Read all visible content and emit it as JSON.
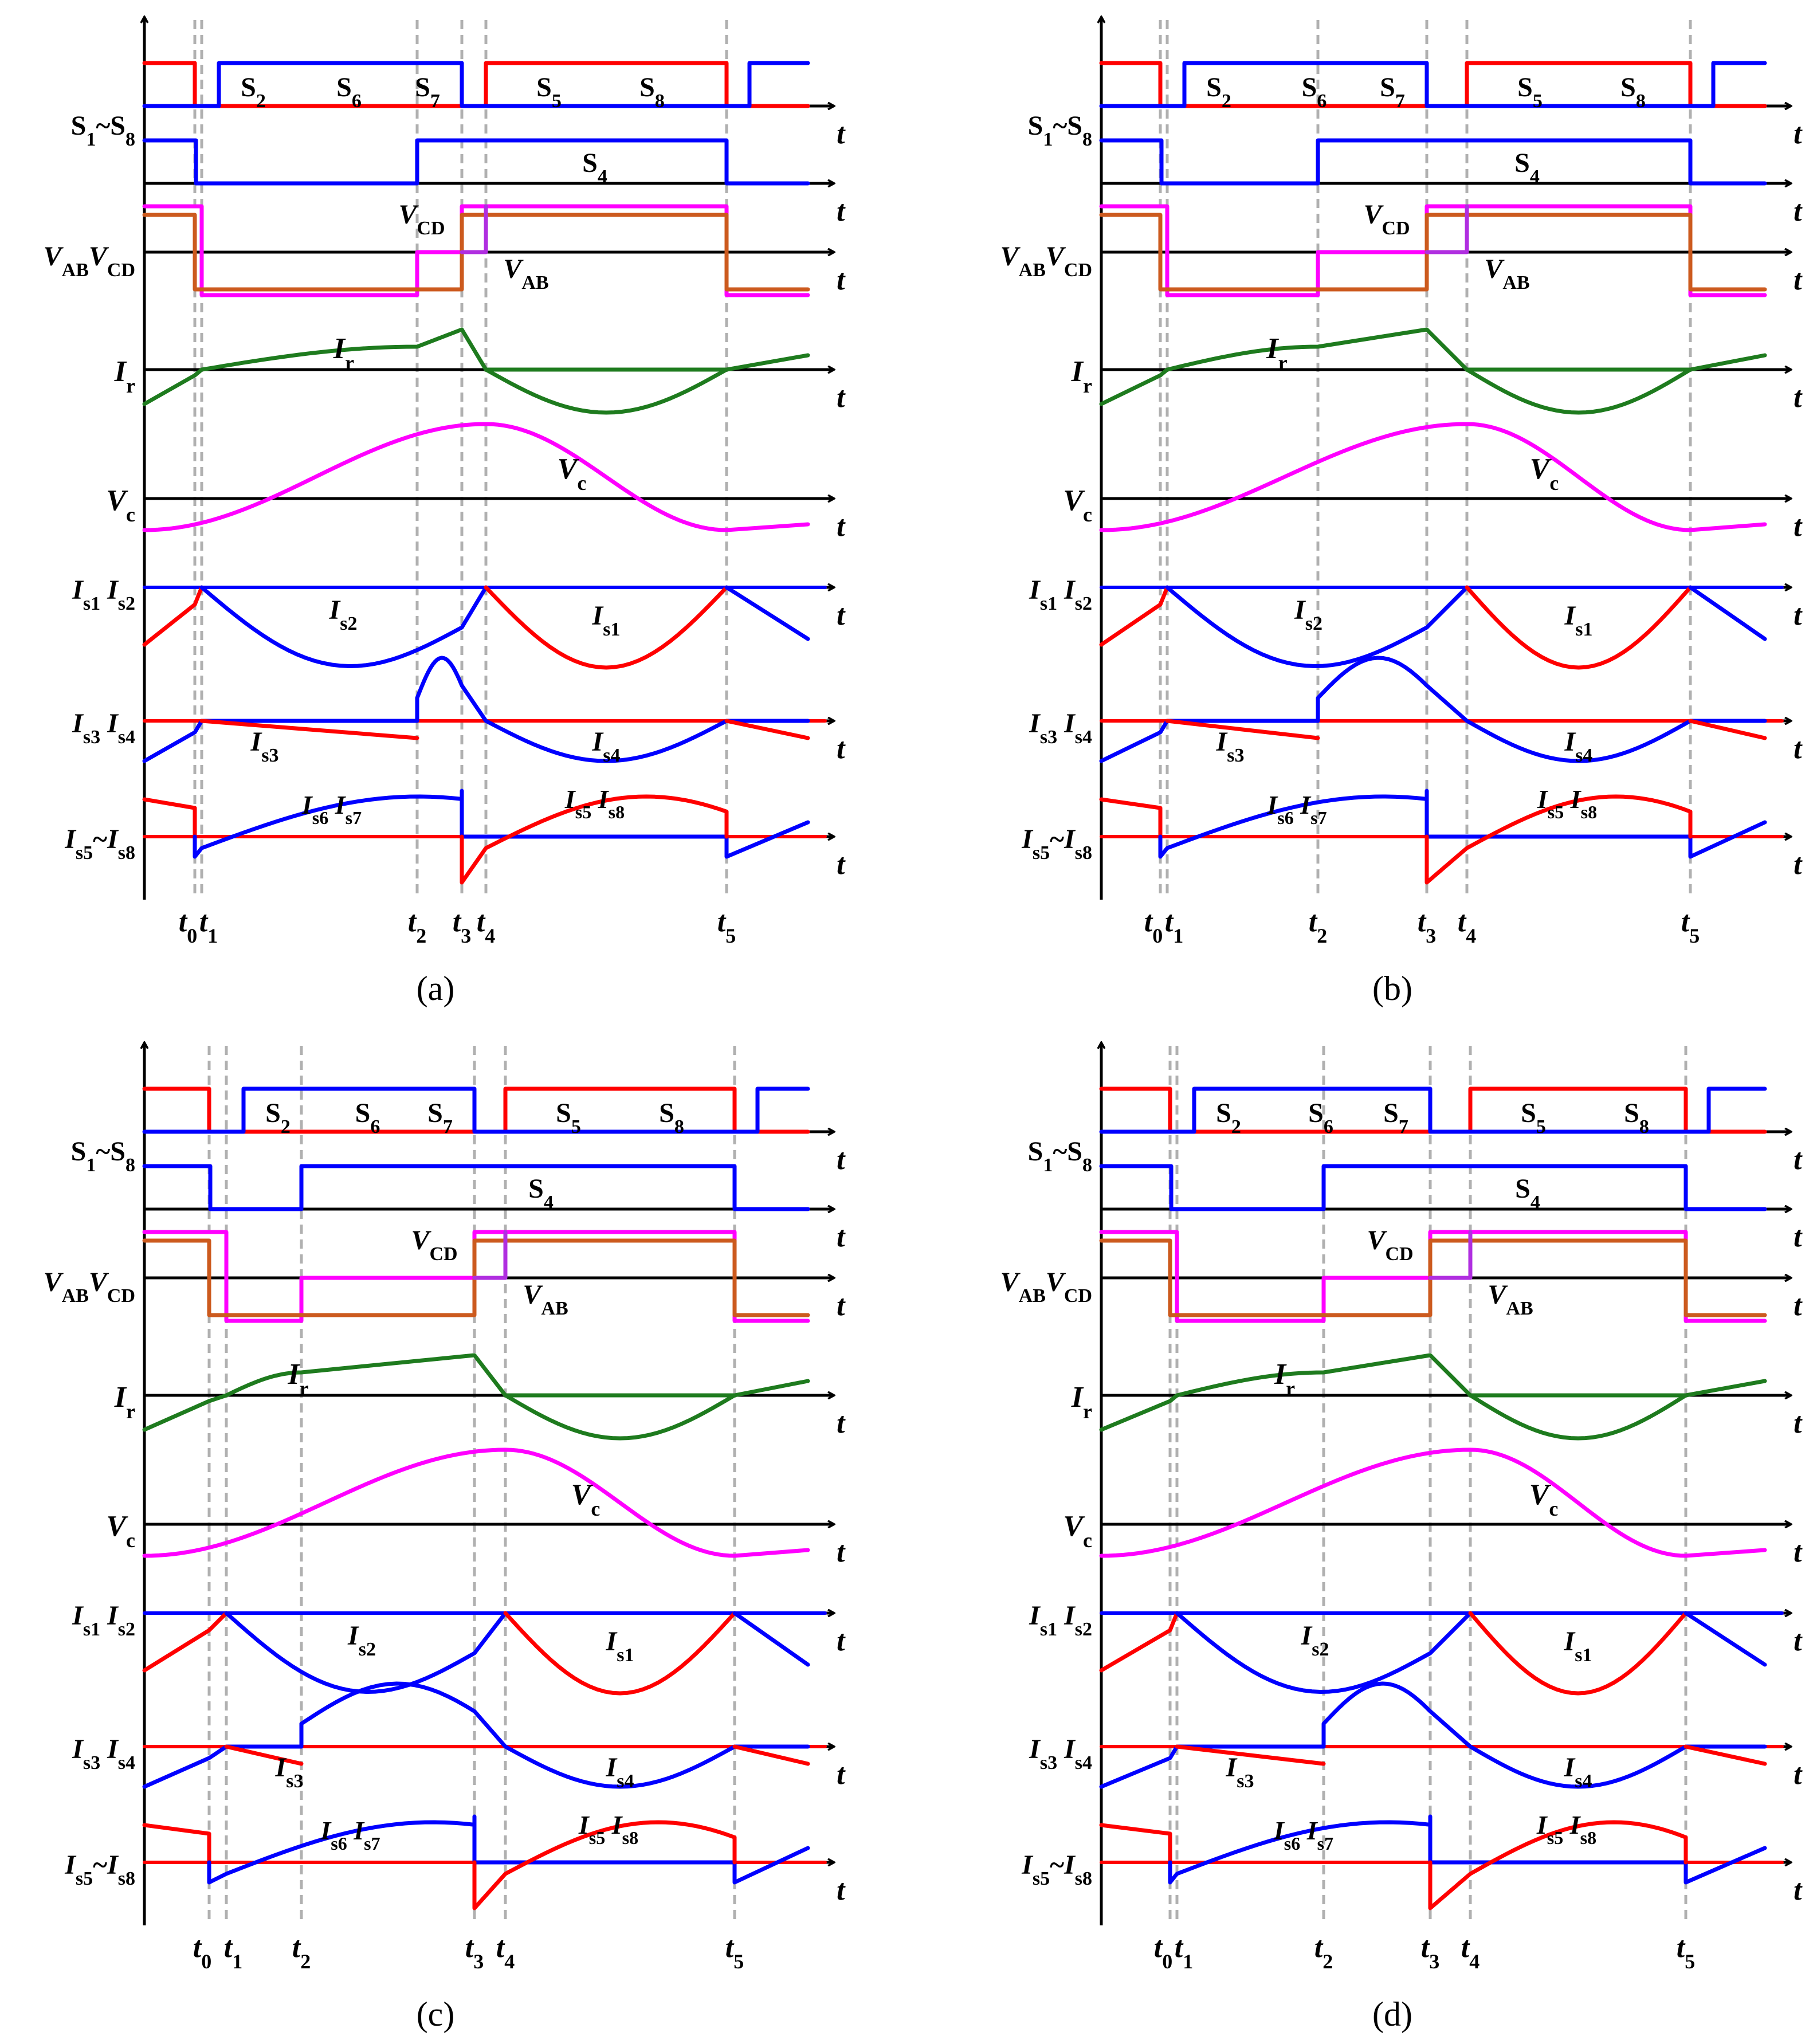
{
  "colors": {
    "axis": "#000000",
    "red": "#ff0000",
    "blue": "#0000ff",
    "green": "#1e7b1e",
    "magenta": "#ff00ff",
    "purple": "#b02ee0",
    "orange": "#cc5a1e",
    "dash": "#b0b0b0"
  },
  "row_labels": {
    "switches": "S1~S8",
    "voltages": "VABVCD",
    "ir": "Ir",
    "vc": "Vc",
    "is12": "Is1 Is2",
    "is34": "Is3 Is4",
    "is58": "Is5~Is8"
  },
  "axis_symbol": "t",
  "panels": [
    {
      "caption": "(a)",
      "time_labels": [
        "t0",
        "t1",
        "t2",
        "t3",
        "t4",
        "t5"
      ],
      "waveform_labels": [
        "S2",
        "S6",
        "S7",
        "S5",
        "S8",
        "S4",
        "VAB",
        "VCD",
        "Ir",
        "Vc",
        "Is2",
        "Is1",
        "Is3",
        "Is4",
        "Is6 Is7",
        "Is5 Is8"
      ]
    },
    {
      "caption": "(b)",
      "time_labels": [
        "t0",
        "t1",
        "t2",
        "t3",
        "t4",
        "t5"
      ],
      "waveform_labels": [
        "S2",
        "S6",
        "S7",
        "S5",
        "S8",
        "S4",
        "VCD",
        "VAB",
        "Ir",
        "Vc",
        "Is2",
        "Is1",
        "Is3",
        "Is4",
        "Is6 Is7",
        "Is5 Is8"
      ]
    },
    {
      "caption": "(c)",
      "time_labels": [
        "t0",
        "t1",
        "t2",
        "t3",
        "t4",
        "t5"
      ],
      "waveform_labels": [
        "S2",
        "S6",
        "S7",
        "S5",
        "S8",
        "S4",
        "VCD",
        "VAB",
        "Ir",
        "Vc",
        "Is2",
        "Is1",
        "Is3",
        "Is4",
        "Is6 Is7",
        "Is5 Is8"
      ]
    },
    {
      "caption": "(d)",
      "time_labels": [
        "t0",
        "t1",
        "t2",
        "t3",
        "t4",
        "t5"
      ],
      "waveform_labels": [
        "S2",
        "S6",
        "S7",
        "S5",
        "S8",
        "S4",
        "VCD",
        "VAB",
        "Ir",
        "Vc",
        "Is2",
        "Is1",
        "Is4",
        "Is3",
        "Is6 Is7",
        "Is5 Is8"
      ]
    }
  ]
}
